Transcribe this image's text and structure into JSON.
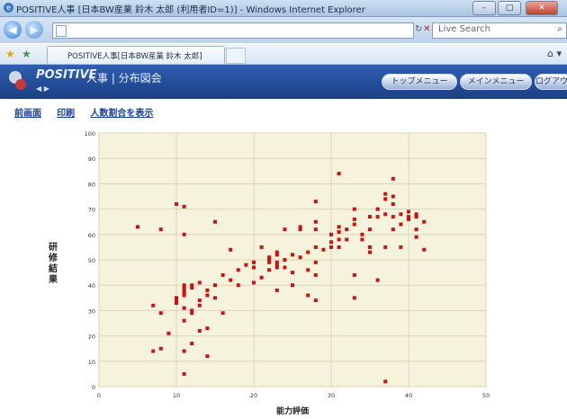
{
  "window": {
    "title": "POSITIVE人事 [日本BW産業 鈴木 太郎 (利用者ID=1)] - Windows Internet Explorer",
    "minimize": "–",
    "maximize": "□",
    "close": "✕"
  },
  "toolbar": {
    "back": "◀",
    "forward": "▶",
    "search_placeholder": "Live Search",
    "refresh": "↻",
    "stop": "✕",
    "search_go": "⌕"
  },
  "tab": {
    "title": "POSITIVE人事[日本BW産業 鈴木 太郎]"
  },
  "app": {
    "brand": "POSITIVE",
    "section": "人事 | 分布図会",
    "nav_arrows": "◀ ▶",
    "buttons": {
      "top_menu": "トップメニュー",
      "main_menu": "メインメニュー",
      "logout": "ログアウト"
    }
  },
  "actions": {
    "prev_screen": "前画面",
    "print": "印刷",
    "show_ratio": "人数割合を表示"
  },
  "chart_data": {
    "type": "scatter",
    "title": "",
    "xlabel": "能力評価",
    "ylabel": "研修結果",
    "xlim": [
      0,
      50
    ],
    "ylim": [
      0,
      100
    ],
    "xticks": [
      0,
      10,
      20,
      30,
      40,
      50
    ],
    "yticks": [
      0,
      10,
      20,
      30,
      40,
      50,
      60,
      70,
      80,
      90,
      100
    ],
    "grid": true,
    "colors": {
      "point": "#cc1111",
      "plot_bg": "#f6f3dd",
      "grid": "#d8d4b4"
    },
    "points": [
      [
        5,
        63
      ],
      [
        8,
        62
      ],
      [
        7,
        32
      ],
      [
        8,
        29
      ],
      [
        9,
        21
      ],
      [
        8,
        15
      ],
      [
        7,
        14
      ],
      [
        10,
        72
      ],
      [
        11,
        71
      ],
      [
        11,
        60
      ],
      [
        10,
        33
      ],
      [
        10,
        35
      ],
      [
        11,
        36
      ],
      [
        11,
        37
      ],
      [
        11,
        38
      ],
      [
        11,
        39
      ],
      [
        11,
        40
      ],
      [
        10,
        34
      ],
      [
        11,
        31
      ],
      [
        11,
        26
      ],
      [
        12,
        29
      ],
      [
        12,
        30
      ],
      [
        12,
        39
      ],
      [
        12,
        40
      ],
      [
        13,
        41
      ],
      [
        13,
        34
      ],
      [
        13,
        32
      ],
      [
        14,
        38
      ],
      [
        14,
        36
      ],
      [
        14,
        23
      ],
      [
        13,
        22
      ],
      [
        12,
        17
      ],
      [
        11,
        5
      ],
      [
        14,
        12
      ],
      [
        11,
        14
      ],
      [
        15,
        65
      ],
      [
        15,
        40
      ],
      [
        15,
        35
      ],
      [
        16,
        44
      ],
      [
        16,
        29
      ],
      [
        17,
        54
      ],
      [
        17,
        42
      ],
      [
        18,
        46
      ],
      [
        18,
        40
      ],
      [
        19,
        48
      ],
      [
        20,
        47
      ],
      [
        20,
        41
      ],
      [
        20,
        49
      ],
      [
        21,
        55
      ],
      [
        21,
        43
      ],
      [
        22,
        46
      ],
      [
        22,
        49
      ],
      [
        22,
        50
      ],
      [
        22,
        51
      ],
      [
        23,
        47
      ],
      [
        23,
        48
      ],
      [
        23,
        49
      ],
      [
        23,
        52
      ],
      [
        23,
        53
      ],
      [
        23,
        38
      ],
      [
        24,
        62
      ],
      [
        24,
        50
      ],
      [
        24,
        47
      ],
      [
        25,
        52
      ],
      [
        25,
        45
      ],
      [
        25,
        40
      ],
      [
        26,
        51
      ],
      [
        26,
        62
      ],
      [
        26,
        63
      ],
      [
        27,
        53
      ],
      [
        27,
        46
      ],
      [
        27,
        36
      ],
      [
        28,
        65
      ],
      [
        28,
        62
      ],
      [
        28,
        55
      ],
      [
        28,
        49
      ],
      [
        28,
        44
      ],
      [
        28,
        34
      ],
      [
        28,
        73
      ],
      [
        29,
        54
      ],
      [
        30,
        55
      ],
      [
        30,
        60
      ],
      [
        30,
        57
      ],
      [
        31,
        55
      ],
      [
        31,
        58
      ],
      [
        31,
        61
      ],
      [
        31,
        63
      ],
      [
        31,
        84
      ],
      [
        32,
        58
      ],
      [
        32,
        62
      ],
      [
        33,
        66
      ],
      [
        33,
        70
      ],
      [
        33,
        64
      ],
      [
        33,
        44
      ],
      [
        33,
        35
      ],
      [
        34,
        60
      ],
      [
        34,
        58
      ],
      [
        35,
        62
      ],
      [
        35,
        67
      ],
      [
        35,
        53
      ],
      [
        36,
        70
      ],
      [
        36,
        67
      ],
      [
        37,
        68
      ],
      [
        37,
        74
      ],
      [
        37,
        76
      ],
      [
        37,
        55
      ],
      [
        38,
        82
      ],
      [
        38,
        75
      ],
      [
        38,
        67
      ],
      [
        38,
        62
      ],
      [
        39,
        68
      ],
      [
        39,
        55
      ],
      [
        40,
        67
      ],
      [
        40,
        66
      ],
      [
        41,
        68
      ],
      [
        41,
        67
      ],
      [
        41,
        62
      ],
      [
        41,
        59
      ],
      [
        42,
        65
      ],
      [
        42,
        54
      ],
      [
        37,
        2
      ],
      [
        36,
        42
      ],
      [
        35,
        55
      ],
      [
        39,
        64
      ],
      [
        40,
        69
      ],
      [
        38,
        72
      ]
    ]
  }
}
